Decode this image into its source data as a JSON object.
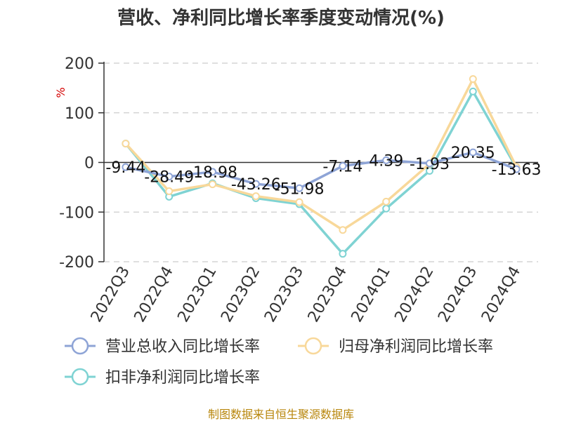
{
  "chart_data": {
    "type": "line",
    "title": "营收、净利同比增长率季度变动情况(%)",
    "ylabel": "%",
    "ylim": [
      -200,
      200
    ],
    "yticks": [
      200,
      100,
      0,
      -100,
      -200
    ],
    "categories": [
      "2022Q3",
      "2022Q4",
      "2023Q1",
      "2023Q2",
      "2023Q3",
      "2023Q4",
      "2024Q1",
      "2024Q2",
      "2024Q3",
      "2024Q4"
    ],
    "series": [
      {
        "name": "营业总收入同比增长率",
        "color": "#8ea4d6",
        "values": [
          -9.44,
          -28.49,
          -18.98,
          -43.26,
          -51.98,
          -7.14,
          4.39,
          -1.93,
          20.35,
          -13.63
        ],
        "labels": [
          "-9.44",
          "-28.49",
          "-18.98",
          "-43.26",
          "-51.98",
          "-7.14",
          "4.39",
          "-1.93",
          "20.35",
          "-13.63"
        ]
      },
      {
        "name": "归母净利润同比增长率",
        "color": "#f8d89a",
        "values": [
          38,
          -58,
          -44,
          -68,
          -80,
          -136,
          -79,
          -3,
          168,
          -9
        ]
      },
      {
        "name": "扣非净利润同比增长率",
        "color": "#7fd3d3",
        "values": [
          38,
          -69,
          -42,
          -72,
          -84,
          -184,
          -93,
          -17,
          143,
          -11
        ]
      }
    ],
    "grid": true,
    "legend_position": "bottom"
  },
  "source_text": "制图数据来自恒生聚源数据库"
}
